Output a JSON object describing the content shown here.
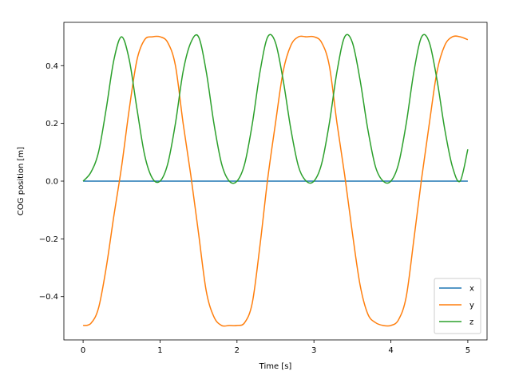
{
  "chart_data": {
    "type": "line",
    "title": "",
    "xlabel": "Time [s]",
    "ylabel": "COG position [m]",
    "xlim": [
      -0.25,
      5.25
    ],
    "ylim": [
      -0.55,
      0.55
    ],
    "xticks": [
      0,
      1,
      2,
      3,
      4,
      5
    ],
    "xtick_labels": [
      "0",
      "1",
      "2",
      "3",
      "4",
      "5"
    ],
    "yticks": [
      -0.4,
      -0.2,
      0.0,
      0.2,
      0.4
    ],
    "ytick_labels": [
      "−0.4",
      "−0.2",
      "0.0",
      "0.2",
      "0.4"
    ],
    "grid": false,
    "legend_position": "bottom-right",
    "x": [
      0.0,
      0.1,
      0.2,
      0.3,
      0.4,
      0.5,
      0.6,
      0.7,
      0.8,
      0.9,
      1.0,
      1.1,
      1.2,
      1.3,
      1.4,
      1.5,
      1.6,
      1.7,
      1.8,
      1.9,
      2.0,
      2.1,
      2.2,
      2.3,
      2.4,
      2.5,
      2.6,
      2.7,
      2.8,
      2.9,
      3.0,
      3.1,
      3.2,
      3.3,
      3.4,
      3.5,
      3.6,
      3.7,
      3.8,
      3.9,
      4.0,
      4.1,
      4.2,
      4.3,
      4.4,
      4.5,
      4.6,
      4.7,
      4.8,
      4.9,
      5.0
    ],
    "series": [
      {
        "name": "x",
        "color": "#1f77b4",
        "values": [
          0.0,
          0.0,
          0.0,
          0.0,
          0.0,
          0.0,
          0.0,
          0.0,
          0.0,
          0.0,
          0.0,
          0.0,
          0.0,
          0.0,
          0.0,
          0.0,
          0.0,
          0.0,
          0.0,
          0.0,
          0.0,
          0.0,
          0.0,
          0.0,
          0.0,
          0.0,
          0.0,
          0.0,
          0.0,
          0.0,
          0.0,
          0.0,
          0.0,
          0.0,
          0.0,
          0.0,
          0.0,
          0.0,
          0.0,
          0.0,
          0.0,
          0.0,
          0.0,
          0.0,
          0.0,
          0.0,
          0.0,
          0.0,
          0.0,
          0.0,
          0.0
        ]
      },
      {
        "name": "y",
        "color": "#ff7f0e",
        "values": [
          -0.5,
          -0.493,
          -0.44,
          -0.3,
          -0.12,
          0.05,
          0.25,
          0.42,
          0.49,
          0.5,
          0.5,
          0.48,
          0.4,
          0.2,
          0.02,
          -0.18,
          -0.38,
          -0.47,
          -0.5,
          -0.5,
          -0.5,
          -0.49,
          -0.42,
          -0.22,
          0.01,
          0.2,
          0.38,
          0.47,
          0.5,
          0.5,
          0.5,
          0.48,
          0.4,
          0.2,
          0.02,
          -0.18,
          -0.36,
          -0.46,
          -0.49,
          -0.5,
          -0.5,
          -0.48,
          -0.4,
          -0.2,
          0.01,
          0.2,
          0.38,
          0.47,
          0.5,
          0.5,
          0.49
        ]
      },
      {
        "name": "z",
        "color": "#2ca02c",
        "values": [
          0.0,
          0.03,
          0.1,
          0.25,
          0.42,
          0.5,
          0.42,
          0.25,
          0.09,
          0.01,
          0.0,
          0.06,
          0.2,
          0.38,
          0.48,
          0.5,
          0.38,
          0.2,
          0.06,
          0.0,
          0.0,
          0.06,
          0.2,
          0.38,
          0.5,
          0.48,
          0.35,
          0.18,
          0.05,
          0.0,
          0.0,
          0.06,
          0.2,
          0.38,
          0.5,
          0.48,
          0.35,
          0.18,
          0.05,
          0.0,
          0.0,
          0.06,
          0.2,
          0.38,
          0.5,
          0.48,
          0.35,
          0.18,
          0.05,
          0.0,
          0.11
        ]
      }
    ]
  }
}
